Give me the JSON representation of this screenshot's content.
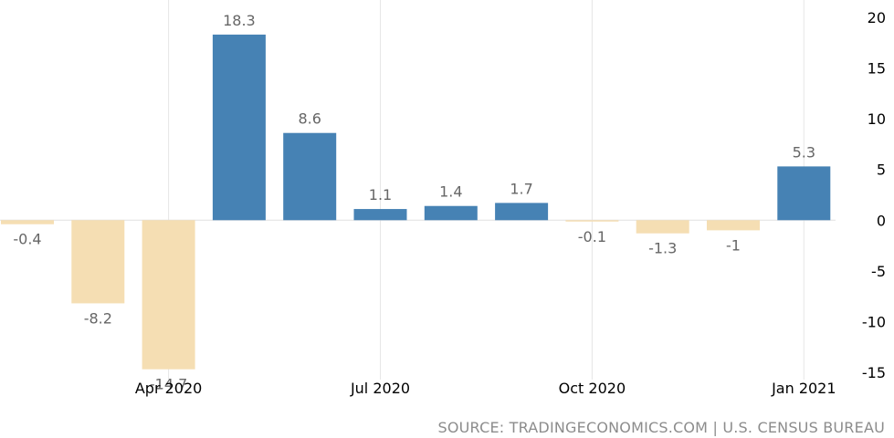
{
  "chart_data": {
    "type": "bar",
    "x": [
      "2020-02",
      "2020-03",
      "2020-04",
      "2020-05",
      "2020-06",
      "2020-07",
      "2020-08",
      "2020-09",
      "2020-10",
      "2020-11",
      "2020-12",
      "2021-01"
    ],
    "values": [
      -0.4,
      -8.2,
      -14.7,
      18.3,
      8.6,
      1.1,
      1.4,
      1.7,
      -0.1,
      -1.3,
      -1,
      5.3
    ],
    "data_labels": [
      "-0.4",
      "-8.2",
      "-14.7",
      "18.3",
      "8.6",
      "1.1",
      "1.4",
      "1.7",
      "-0.1",
      "-1.3",
      "-1",
      "5.3"
    ],
    "x_tick_labels": [
      {
        "label": "Apr 2020",
        "at": "2020-04"
      },
      {
        "label": "Jul 2020",
        "at": "2020-07"
      },
      {
        "label": "Oct 2020",
        "at": "2020-10"
      },
      {
        "label": "Jan 2021",
        "at": "2021-01"
      }
    ],
    "y_ticks": [
      20,
      15,
      10,
      5,
      0,
      -5,
      -10,
      -15
    ],
    "ylim": [
      -15,
      20
    ],
    "y_axis_side": "right",
    "grid": "vertical",
    "colors": {
      "positive": "#4682b4",
      "negative": "#f5deb3",
      "grid": "#e6e6e6",
      "zero_line": "#e0e0e0"
    }
  },
  "footer": {
    "source": "SOURCE: TRADINGECONOMICS.COM | U.S. CENSUS BUREAU"
  }
}
